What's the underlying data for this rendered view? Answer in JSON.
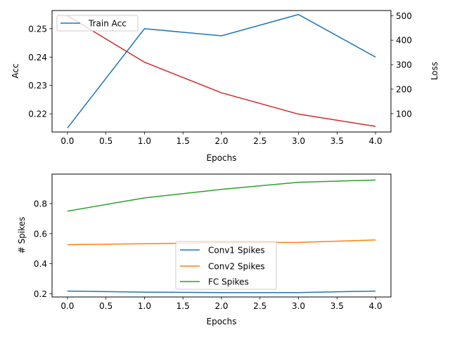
{
  "chart_data": [
    {
      "type": "line",
      "xlabel": "Epochs",
      "ylabel": "Acc",
      "y2label": "Loss",
      "x": [
        0,
        1,
        2,
        3,
        4
      ],
      "xlim": [
        -0.2,
        4.2
      ],
      "ylim": [
        0.2136,
        0.2564
      ],
      "y2lim": [
        25,
        521
      ],
      "xticks": [
        "0.0",
        "0.5",
        "1.0",
        "1.5",
        "2.0",
        "2.5",
        "3.0",
        "3.5",
        "4.0"
      ],
      "yticks": [
        "0.22",
        "0.23",
        "0.24",
        "0.25"
      ],
      "y2ticks": [
        "100",
        "200",
        "300",
        "400",
        "500"
      ],
      "series": [
        {
          "name": "Train Acc",
          "axis": "left",
          "color": "#1f77b4",
          "values": [
            0.215,
            0.25,
            0.2475,
            0.255,
            0.24
          ]
        },
        {
          "axis": "right",
          "color": "#d62728",
          "values": [
            500,
            310,
            185,
            98,
            48
          ]
        }
      ],
      "legend": "upper-left",
      "grid": false
    },
    {
      "type": "line",
      "xlabel": "Epochs",
      "ylabel": "# Spikes",
      "x": [
        0,
        1,
        2,
        3,
        4
      ],
      "xlim": [
        -0.2,
        4.2
      ],
      "ylim": [
        0.1786,
        0.9964
      ],
      "xticks": [
        "0.0",
        "0.5",
        "1.0",
        "1.5",
        "2.0",
        "2.5",
        "3.0",
        "3.5",
        "4.0"
      ],
      "yticks": [
        "0.2",
        "0.4",
        "0.6",
        "0.8"
      ],
      "series": [
        {
          "name": "Conv1 Spikes",
          "color": "#1f77b4",
          "values": [
            0.218,
            0.211,
            0.208,
            0.208,
            0.218
          ]
        },
        {
          "name": "Conv2 Spikes",
          "color": "#ff7f0e",
          "values": [
            0.527,
            0.533,
            0.54,
            0.542,
            0.558
          ]
        },
        {
          "name": "FC Spikes",
          "color": "#2ca02c",
          "values": [
            0.75,
            0.838,
            0.895,
            0.942,
            0.957
          ]
        }
      ],
      "legend": "lower-center",
      "grid": false
    }
  ]
}
